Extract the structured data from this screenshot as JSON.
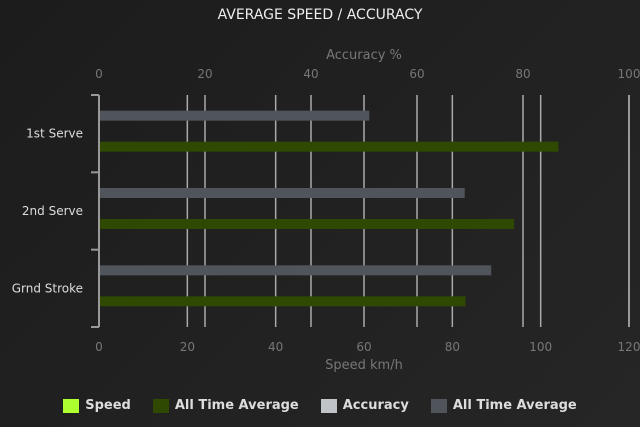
{
  "chart_data": {
    "type": "bar",
    "orientation": "horizontal",
    "title": "AVERAGE SPEED / ACCURACY",
    "categories": [
      "1st Serve",
      "2nd Serve",
      "Grnd Stroke"
    ],
    "top_axis": {
      "label": "Accuracy %",
      "range": [
        0,
        100
      ],
      "ticks": [
        "0",
        "20",
        "40",
        "60",
        "80",
        "100"
      ]
    },
    "bottom_axis": {
      "label": "Speed km/h",
      "range": [
        0,
        120
      ],
      "ticks": [
        "0",
        "20",
        "40",
        "60",
        "80",
        "100",
        "120"
      ]
    },
    "grid": true,
    "legend_position": "bottom",
    "legend": [
      {
        "name": "Speed",
        "color": "#adff2f"
      },
      {
        "name": "All Time Average",
        "color": "#2f4a00"
      },
      {
        "name": "Accuracy",
        "color": "#c0c4c8"
      },
      {
        "name": "All Time Average",
        "color": "#50555c"
      }
    ],
    "series": [
      {
        "name": "All Time Average",
        "axis": "accuracy",
        "color": "#50555c",
        "values": [
          51,
          69,
          74
        ]
      },
      {
        "name": "All Time Average",
        "axis": "speed",
        "color": "#2f4a00",
        "values": [
          104,
          94,
          83
        ]
      }
    ]
  }
}
